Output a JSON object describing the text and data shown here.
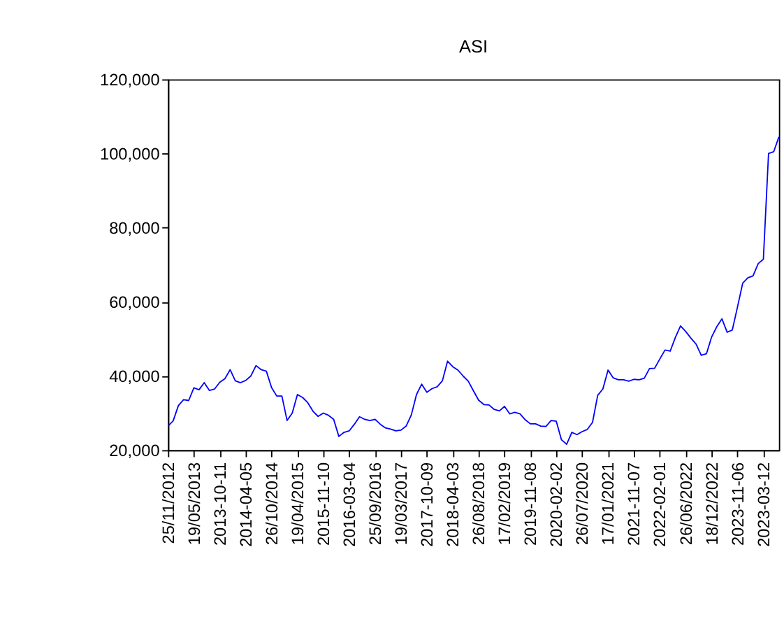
{
  "chart_data": {
    "type": "line",
    "title": "ASI",
    "categories": [
      "25/11/2012",
      null,
      null,
      null,
      null,
      "19/05/2013",
      null,
      null,
      null,
      null,
      "2013-10-11",
      null,
      null,
      null,
      null,
      "2014-04-05",
      null,
      null,
      null,
      null,
      "26/10/2014",
      null,
      null,
      null,
      null,
      "19/04/2015",
      null,
      null,
      null,
      null,
      "2015-11-10",
      null,
      null,
      null,
      null,
      "2016-03-04",
      null,
      null,
      null,
      null,
      "25/09/2016",
      null,
      null,
      null,
      null,
      "19/03/2017",
      null,
      null,
      null,
      null,
      "2017-10-09",
      null,
      null,
      null,
      null,
      "2018-04-03",
      null,
      null,
      null,
      null,
      "26/08/2018",
      null,
      null,
      null,
      null,
      "17/02/2019",
      null,
      null,
      null,
      null,
      "2019-11-08",
      null,
      null,
      null,
      null,
      "2020-02-02",
      null,
      null,
      null,
      null,
      "26/07/2020",
      null,
      null,
      null,
      null,
      "17/01/2021",
      null,
      null,
      null,
      null,
      "2021-11-07",
      null,
      null,
      null,
      null,
      "2022-02-01",
      null,
      null,
      null,
      null,
      "26/06/2022",
      null,
      null,
      null,
      null,
      "18/12/2022",
      null,
      null,
      null,
      null,
      "2023-11-06",
      null,
      null,
      null,
      null,
      "2023-03-12",
      null,
      null,
      null
    ],
    "series": [
      {
        "color": "#0000ff",
        "values": [
          26500,
          27900,
          32000,
          33600,
          33400,
          36800,
          36300,
          38200,
          36100,
          36500,
          38300,
          39300,
          41700,
          38700,
          38200,
          38800,
          40000,
          42800,
          41700,
          41300,
          36900,
          34600,
          34600,
          28000,
          30000,
          35000,
          34200,
          32800,
          30500,
          29100,
          30000,
          29400,
          28300,
          23700,
          24800,
          25200,
          27000,
          29000,
          28300,
          28000,
          28300,
          27000,
          26000,
          25700,
          25200,
          25400,
          26500,
          29500,
          35000,
          37800,
          35600,
          36600,
          37100,
          38700,
          44000,
          42500,
          41600,
          40000,
          38600,
          36000,
          33500,
          32300,
          32200,
          31000,
          30600,
          31800,
          29800,
          30200,
          29800,
          28200,
          27100,
          27100,
          26500,
          26400,
          28000,
          27800,
          22800,
          21600,
          24800,
          24200,
          25000,
          25600,
          27500,
          34800,
          36500,
          41600,
          39500,
          39000,
          39000,
          38600,
          39100,
          39000,
          39400,
          42000,
          42100,
          44600,
          47000,
          46700,
          50400,
          53500,
          52000,
          50200,
          48600,
          45600,
          46000,
          50500,
          53300,
          55400,
          51800,
          52400,
          58600,
          65000,
          66500,
          67000,
          70300,
          71500,
          100000,
          100500,
          104500
        ]
      }
    ],
    "ylim": [
      20000,
      120000
    ],
    "yticks": [
      {
        "value": 20000,
        "label": "20,000"
      },
      {
        "value": 40000,
        "label": "40,000"
      },
      {
        "value": 60000,
        "label": "60,000"
      },
      {
        "value": 80000,
        "label": "80,000"
      },
      {
        "value": 100000,
        "label": "100,000"
      },
      {
        "value": 120000,
        "label": "120,000"
      }
    ],
    "grid": false,
    "legend": false,
    "marker": "none",
    "line_style": "solid"
  }
}
